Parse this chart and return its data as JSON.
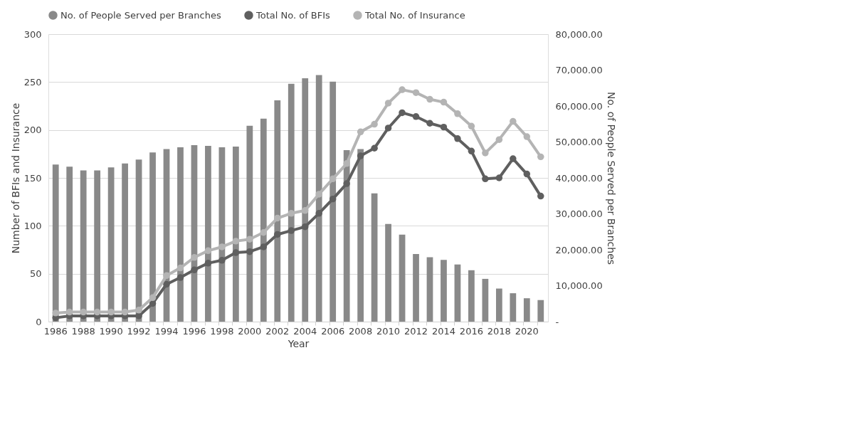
{
  "chart_data": {
    "type": "bar",
    "xlabel": "Year",
    "ylabel": "Number of BFIs and Insurance",
    "y2label": "No. of People Served per Branches",
    "categories": [
      "1986",
      null,
      "1988",
      null,
      "1990",
      null,
      "1992",
      null,
      "1994",
      null,
      "1996",
      null,
      "1998",
      null,
      "2000",
      null,
      "2002",
      null,
      "2004",
      null,
      "2006",
      null,
      "2008",
      null,
      "2010",
      null,
      "2012",
      null,
      "2014",
      null,
      "2016",
      null,
      "2018",
      null,
      "2020",
      null
    ],
    "series": [
      {
        "name": "No. of People Served per Branches",
        "axis": "y2",
        "color": "#898989",
        "values": [
          43700,
          43100,
          42100,
          42100,
          42900,
          44000,
          45100,
          47100,
          48000,
          48500,
          49100,
          48900,
          48500,
          48700,
          54500,
          56500,
          61600,
          66200,
          67700,
          68600,
          66800,
          47700,
          48000,
          35700,
          27200,
          24200,
          18800,
          17900,
          17200,
          15900,
          14300,
          11900,
          9200,
          7900,
          6500,
          6000
        ]
      },
      {
        "name": "Total No. of BFIs",
        "type": "line",
        "color": "#5f5f5f",
        "values": [
          4,
          6,
          6,
          6,
          6,
          6,
          6,
          19,
          39,
          46,
          54,
          61,
          64,
          72,
          73,
          78,
          91,
          95,
          99,
          113,
          128,
          144,
          173,
          181,
          202,
          218,
          214,
          207,
          203,
          191,
          178,
          149,
          150,
          170,
          154,
          131
        ]
      },
      {
        "name": "Total No. of Insurance",
        "type": "line",
        "color": "#b4b4b4",
        "values": [
          9,
          10,
          10,
          10,
          10,
          10,
          12,
          25,
          48,
          56,
          67,
          74,
          78,
          84,
          86,
          93,
          108,
          113,
          116,
          133,
          149,
          165,
          198,
          206,
          228,
          242,
          239,
          232,
          229,
          217,
          204,
          176,
          190,
          209,
          193,
          172
        ]
      }
    ],
    "ylim": [
      0,
      300
    ],
    "yticks": [
      0,
      50,
      100,
      150,
      200,
      250,
      300
    ],
    "y2lim": [
      0,
      80000
    ],
    "y2ticks": [
      {
        "value": 0,
        "label": "-"
      },
      {
        "value": 10000,
        "label": "10,000.00"
      },
      {
        "value": 20000,
        "label": "20,000.00"
      },
      {
        "value": 30000,
        "label": "30,000.00"
      },
      {
        "value": 40000,
        "label": "40,000.00"
      },
      {
        "value": 50000,
        "label": "50,000.00"
      },
      {
        "value": 60000,
        "label": "60,000.00"
      },
      {
        "value": 70000,
        "label": "70,000.00"
      },
      {
        "value": 80000,
        "label": "80,000.00"
      }
    ],
    "grid": "y",
    "legend": "top",
    "marker": "circle",
    "line_style": "solid"
  }
}
